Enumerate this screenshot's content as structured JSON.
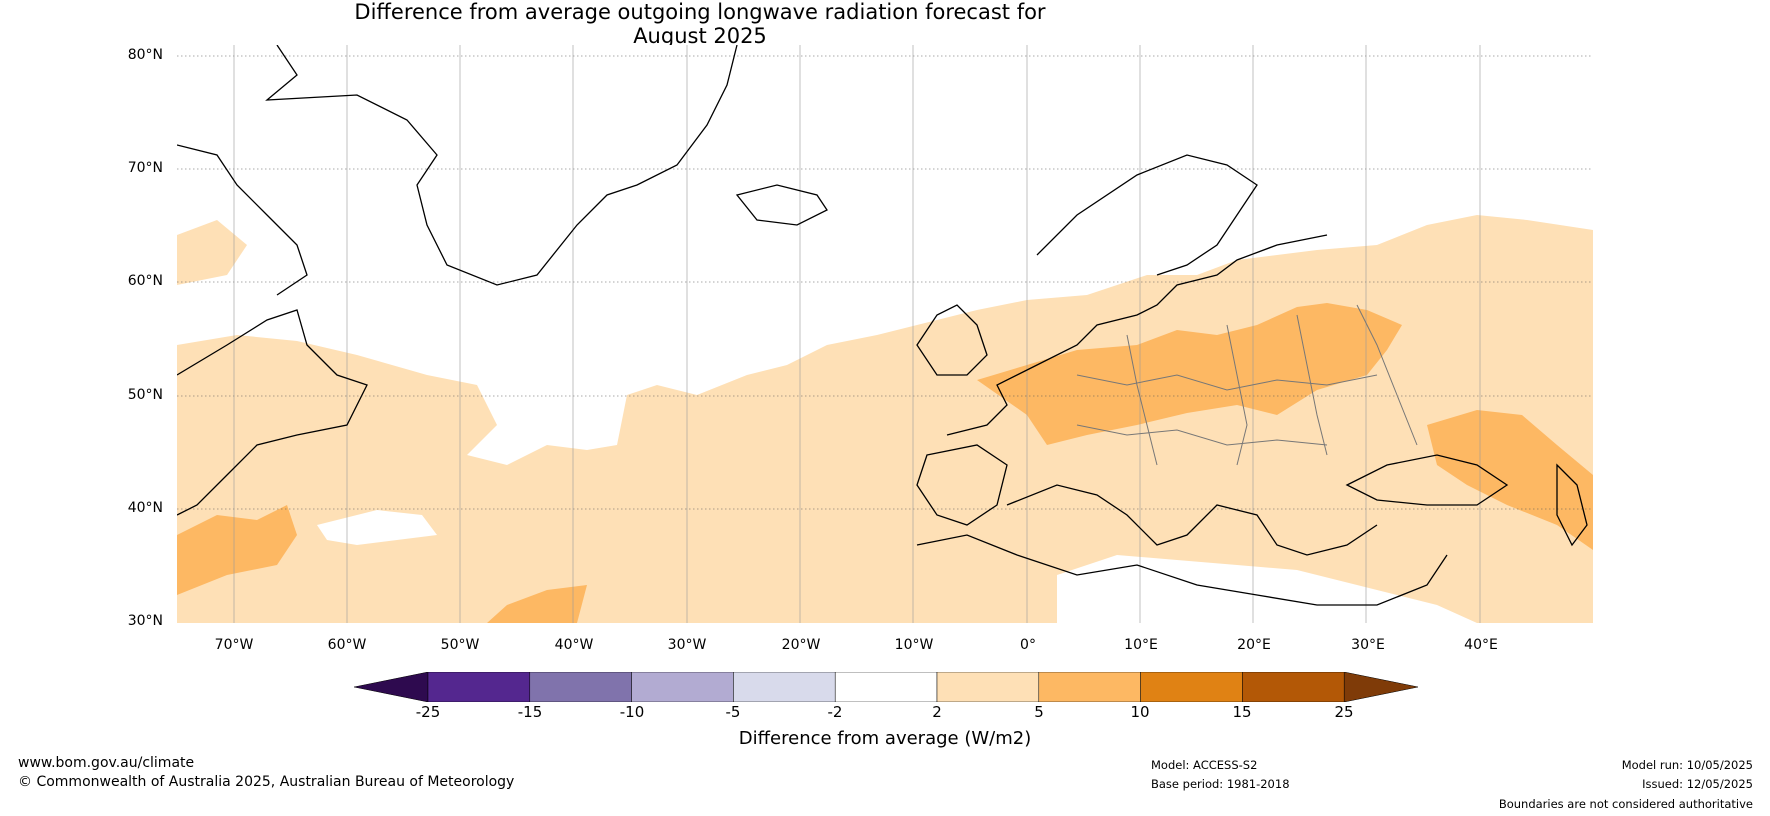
{
  "title": {
    "line1": "Difference from average outgoing longwave radiation forecast for",
    "line2": "August 2025"
  },
  "axes": {
    "lat_labels": [
      "80°N",
      "70°N",
      "60°N",
      "50°N",
      "40°N",
      "30°N"
    ],
    "lon_labels": [
      "70°W",
      "60°W",
      "50°W",
      "40°W",
      "30°W",
      "20°W",
      "10°W",
      "0°",
      "10°E",
      "20°E",
      "30°E",
      "40°E"
    ]
  },
  "legend": {
    "tick_labels": [
      "-25",
      "-15",
      "-10",
      "-5",
      "-2",
      "2",
      "5",
      "10",
      "15",
      "25"
    ],
    "label": "Difference from average (W/m2)",
    "colors": [
      "#2e0a4f",
      "#54278f",
      "#8073ac",
      "#b2abd2",
      "#d8daeb",
      "#ffffff",
      "#fee0b6",
      "#fdb863",
      "#e08214",
      "#b35806",
      "#7f3b08"
    ]
  },
  "footer": {
    "url": "www.bom.gov.au/climate",
    "copyright": "© Commonwealth of Australia 2025, Australian Bureau of Meteorology",
    "model": "Model: ACCESS-S2",
    "base_period": "Base period: 1981-2018",
    "model_run": "Model run: 10/05/2025",
    "issued": "Issued: 12/05/2025",
    "disclaimer": "Boundaries are not considered authoritative"
  }
}
